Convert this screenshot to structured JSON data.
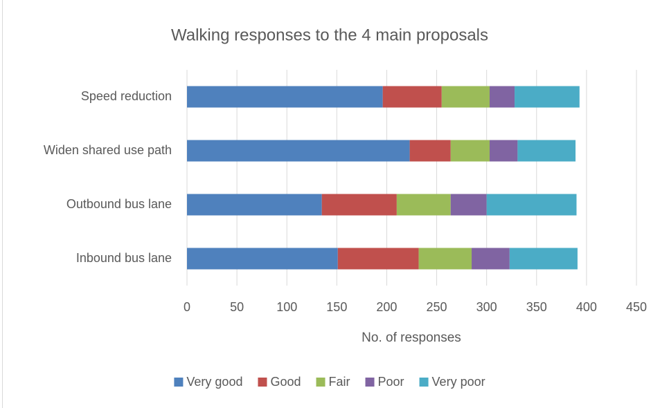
{
  "chart_data": {
    "type": "stacked-bar-horizontal",
    "title": "Walking responses to the 4 main proposals",
    "x_label": "No. of responses",
    "categories": [
      "Speed reduction",
      "Widen shared use path",
      "Outbound bus lane",
      "Inbound bus lane"
    ],
    "series": [
      {
        "name": "Very good",
        "color": "#4f81bd",
        "values": [
          196,
          223,
          135,
          151
        ]
      },
      {
        "name": "Good",
        "color": "#c0504d",
        "values": [
          59,
          41,
          75,
          81
        ]
      },
      {
        "name": "Fair",
        "color": "#9bbb59",
        "values": [
          48,
          39,
          54,
          53
        ]
      },
      {
        "name": "Poor",
        "color": "#8064a2",
        "values": [
          25,
          28,
          36,
          38
        ]
      },
      {
        "name": "Very poor",
        "color": "#4bacc6",
        "values": [
          65,
          58,
          90,
          68
        ]
      }
    ],
    "xlim": [
      0,
      450
    ],
    "xticks": [
      0,
      50,
      100,
      150,
      200,
      250,
      300,
      350,
      400,
      450
    ],
    "grid": true,
    "legend": "bottom"
  }
}
